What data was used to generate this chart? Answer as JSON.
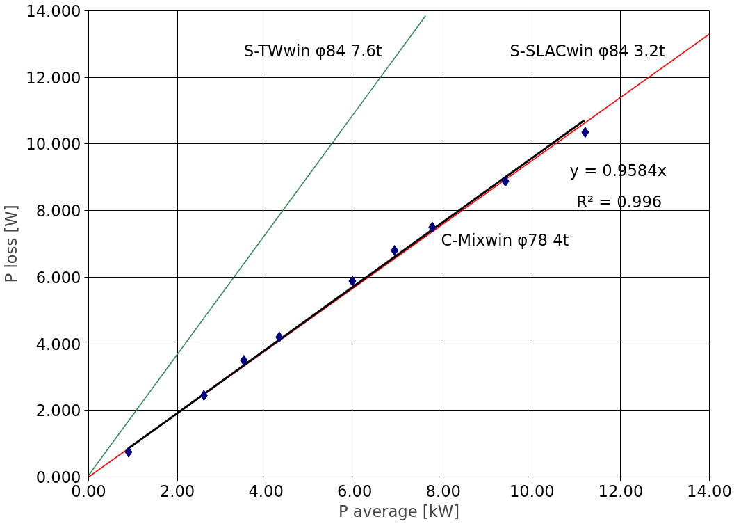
{
  "chart_data": {
    "type": "scatter",
    "xlabel": "P average [kW]",
    "ylabel": "P loss [W]",
    "xlim": [
      0,
      14
    ],
    "ylim": [
      0,
      14
    ],
    "xticks": [
      {
        "value": 0,
        "label": "0.00"
      },
      {
        "value": 2,
        "label": "2.00"
      },
      {
        "value": 4,
        "label": "4.00"
      },
      {
        "value": 6,
        "label": "6.00"
      },
      {
        "value": 8,
        "label": "8.00"
      },
      {
        "value": 10,
        "label": "10.00"
      },
      {
        "value": 12,
        "label": "12.00"
      },
      {
        "value": 14,
        "label": "14.00"
      }
    ],
    "yticks": [
      {
        "value": 0,
        "label": "0.000"
      },
      {
        "value": 2,
        "label": "2.000"
      },
      {
        "value": 4,
        "label": "4.000"
      },
      {
        "value": 6,
        "label": "6.000"
      },
      {
        "value": 8,
        "label": "8.000"
      },
      {
        "value": 10,
        "label": "10.000"
      },
      {
        "value": 12,
        "label": "12.000"
      },
      {
        "value": 14,
        "label": "14.000"
      }
    ],
    "grid": true,
    "series": [
      {
        "type": "line",
        "name": "S-TWwin φ84  7.6t",
        "color": "#2e8b57",
        "x": [
          0,
          7.6
        ],
        "values": [
          0.05,
          13.85
        ]
      },
      {
        "type": "line",
        "name": "S-SLACwin φ84  3.2t",
        "color": "#ff0000",
        "x": [
          0,
          14
        ],
        "values": [
          0,
          13.3
        ]
      },
      {
        "type": "line",
        "color": "#000000",
        "x": [
          0.9,
          11.18
        ],
        "values": [
          0.86,
          10.71
        ]
      },
      {
        "name": "C-Mixwin φ78  4t",
        "marker": "diamond",
        "color": "#000080",
        "x": [
          0.9,
          2.6,
          3.5,
          4.3,
          5.95,
          6.9,
          7.75,
          9.4,
          11.2
        ],
        "values": [
          0.75,
          2.45,
          3.5,
          4.2,
          5.88,
          6.8,
          7.5,
          8.88,
          10.35
        ]
      }
    ],
    "annotations": [
      "y = 0.9584x",
      "R² = 0.996"
    ]
  }
}
